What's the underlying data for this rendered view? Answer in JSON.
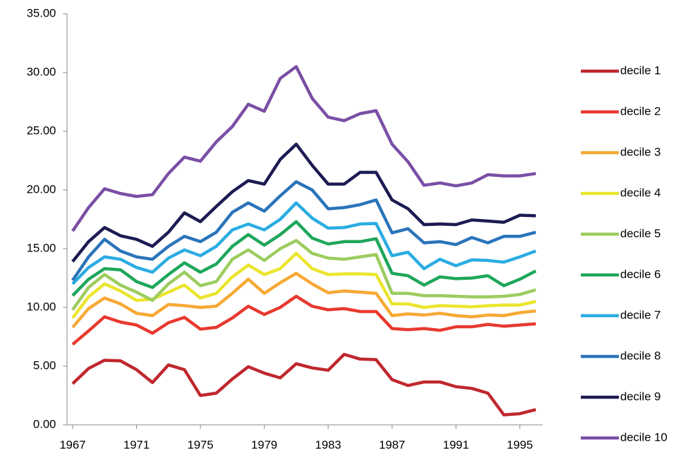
{
  "chart_data": {
    "type": "line",
    "categories": [
      "1967",
      null,
      null,
      null,
      "1971",
      null,
      null,
      null,
      "1975",
      null,
      null,
      null,
      "1979",
      null,
      null,
      null,
      "1983",
      null,
      null,
      null,
      "1987",
      null,
      null,
      null,
      "1991",
      null,
      null,
      null,
      "1995",
      null
    ],
    "ylim": [
      0,
      35
    ],
    "yticks": [
      {
        "value": 0,
        "label": "0.00"
      },
      {
        "value": 5,
        "label": "5.00"
      },
      {
        "value": 10,
        "label": "10.00"
      },
      {
        "value": 15,
        "label": "15.00"
      },
      {
        "value": 20,
        "label": "20.00"
      },
      {
        "value": 25,
        "label": "25.00"
      },
      {
        "value": 30,
        "label": "30.00"
      },
      {
        "value": 35,
        "label": "35.00"
      }
    ],
    "legend": "right",
    "series": [
      {
        "name": "decile 1",
        "color": "#c0272d",
        "values": [
          3.5,
          4.8,
          5.5,
          5.45,
          4.7,
          3.6,
          5.1,
          4.7,
          2.5,
          2.7,
          3.9,
          4.95,
          4.4,
          4.0,
          5.2,
          4.85,
          4.65,
          6.0,
          5.6,
          5.55,
          3.85,
          3.35,
          3.65,
          3.65,
          3.25,
          3.1,
          2.7,
          0.85,
          0.95,
          1.3
        ]
      },
      {
        "name": "decile 2",
        "color": "#e8392f",
        "values": [
          6.85,
          8.0,
          9.2,
          8.75,
          8.5,
          7.8,
          8.7,
          9.15,
          8.15,
          8.3,
          9.1,
          10.1,
          9.4,
          10.0,
          10.95,
          10.1,
          9.8,
          9.9,
          9.65,
          9.65,
          8.2,
          8.1,
          8.2,
          8.05,
          8.35,
          8.35,
          8.55,
          8.4,
          8.5,
          8.6
        ]
      },
      {
        "name": "decile 3",
        "color": "#f7a934",
        "values": [
          8.3,
          9.9,
          10.8,
          10.3,
          9.5,
          9.3,
          10.25,
          10.15,
          10.0,
          10.1,
          11.2,
          12.4,
          11.2,
          12.1,
          12.9,
          12.0,
          11.25,
          11.4,
          11.3,
          11.2,
          9.3,
          9.45,
          9.35,
          9.5,
          9.3,
          9.2,
          9.35,
          9.3,
          9.55,
          9.7
        ]
      },
      {
        "name": "decile 4",
        "color": "#ebe52d",
        "values": [
          9.1,
          10.9,
          12.0,
          11.4,
          10.6,
          10.7,
          11.3,
          11.9,
          10.8,
          11.2,
          12.6,
          13.6,
          12.8,
          13.3,
          14.6,
          13.3,
          12.8,
          12.85,
          12.85,
          12.8,
          10.3,
          10.3,
          10.0,
          10.15,
          10.1,
          10.05,
          10.15,
          10.2,
          10.2,
          10.5
        ]
      },
      {
        "name": "decile 5",
        "color": "#9ccc5e",
        "values": [
          9.8,
          11.7,
          12.8,
          11.9,
          11.3,
          10.6,
          12.0,
          13.0,
          11.85,
          12.2,
          14.1,
          14.9,
          14.0,
          15.0,
          15.7,
          14.6,
          14.2,
          14.1,
          14.3,
          14.5,
          11.2,
          11.2,
          11.0,
          11.0,
          10.95,
          10.9,
          10.9,
          10.95,
          11.1,
          11.5
        ]
      },
      {
        "name": "decile 6",
        "color": "#1ea65a",
        "values": [
          11.0,
          12.4,
          13.3,
          13.2,
          12.2,
          11.7,
          12.8,
          13.8,
          13.0,
          13.7,
          15.2,
          16.2,
          15.3,
          16.2,
          17.3,
          15.9,
          15.4,
          15.6,
          15.6,
          15.85,
          12.9,
          12.7,
          11.9,
          12.6,
          12.45,
          12.5,
          12.7,
          11.85,
          12.4,
          13.1
        ]
      },
      {
        "name": "decile 7",
        "color": "#2aace2",
        "values": [
          12.0,
          13.4,
          14.3,
          14.1,
          13.4,
          13.0,
          14.2,
          14.9,
          14.4,
          15.2,
          16.6,
          17.1,
          16.6,
          17.5,
          18.9,
          17.6,
          16.75,
          16.8,
          17.1,
          17.15,
          14.4,
          14.7,
          13.3,
          14.1,
          13.55,
          14.05,
          14.0,
          13.85,
          14.3,
          14.8
        ]
      },
      {
        "name": "decile 8",
        "color": "#2a74ba",
        "values": [
          12.3,
          14.3,
          15.8,
          14.8,
          14.3,
          14.1,
          15.2,
          16.05,
          15.6,
          16.4,
          18.1,
          18.9,
          18.2,
          19.5,
          20.7,
          20.0,
          18.4,
          18.5,
          18.75,
          19.15,
          16.35,
          16.7,
          15.5,
          15.6,
          15.35,
          15.95,
          15.5,
          16.05,
          16.05,
          16.4
        ]
      },
      {
        "name": "decile 9",
        "color": "#1c1b52",
        "values": [
          13.9,
          15.6,
          16.8,
          16.1,
          15.8,
          15.2,
          16.4,
          18.05,
          17.3,
          18.6,
          19.85,
          20.8,
          20.5,
          22.6,
          23.9,
          22.1,
          20.5,
          20.5,
          21.5,
          21.5,
          19.15,
          18.4,
          17.05,
          17.1,
          17.05,
          17.45,
          17.35,
          17.25,
          17.85,
          17.8
        ]
      },
      {
        "name": "decile 10",
        "color": "#7a4fa5",
        "values": [
          16.5,
          18.5,
          20.1,
          19.7,
          19.45,
          19.6,
          21.4,
          22.8,
          22.45,
          24.1,
          25.4,
          27.3,
          26.7,
          29.5,
          30.5,
          27.8,
          26.2,
          25.9,
          26.5,
          26.75,
          23.9,
          22.4,
          20.4,
          20.6,
          20.35,
          20.6,
          21.3,
          21.2,
          21.2,
          21.4
        ]
      }
    ]
  }
}
